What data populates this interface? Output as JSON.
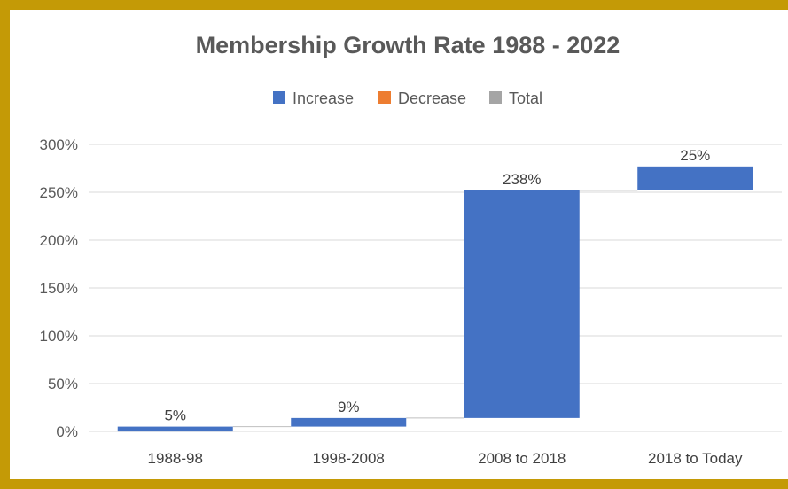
{
  "chart_data": {
    "type": "waterfall",
    "title": "Membership Growth Rate 1988 - 2022",
    "legend": {
      "position": "top",
      "items": [
        {
          "label": "Increase",
          "color": "#4472c4"
        },
        {
          "label": "Decrease",
          "color": "#ed7d31"
        },
        {
          "label": "Total",
          "color": "#a5a5a5"
        }
      ]
    },
    "categories": [
      "1988-98",
      "1998-2008",
      "2008 to 2018",
      "2018 to Today"
    ],
    "values": [
      5,
      9,
      238,
      25
    ],
    "data_labels": [
      "5%",
      "9%",
      "238%",
      "25%"
    ],
    "ylim": [
      0,
      300
    ],
    "yticks": [
      0,
      50,
      100,
      150,
      200,
      250,
      300
    ],
    "ytick_labels": [
      "0%",
      "50%",
      "100%",
      "150%",
      "200%",
      "250%",
      "300%"
    ],
    "grid": true,
    "bar_color": "#4472c4",
    "xlabel": "",
    "ylabel": ""
  }
}
